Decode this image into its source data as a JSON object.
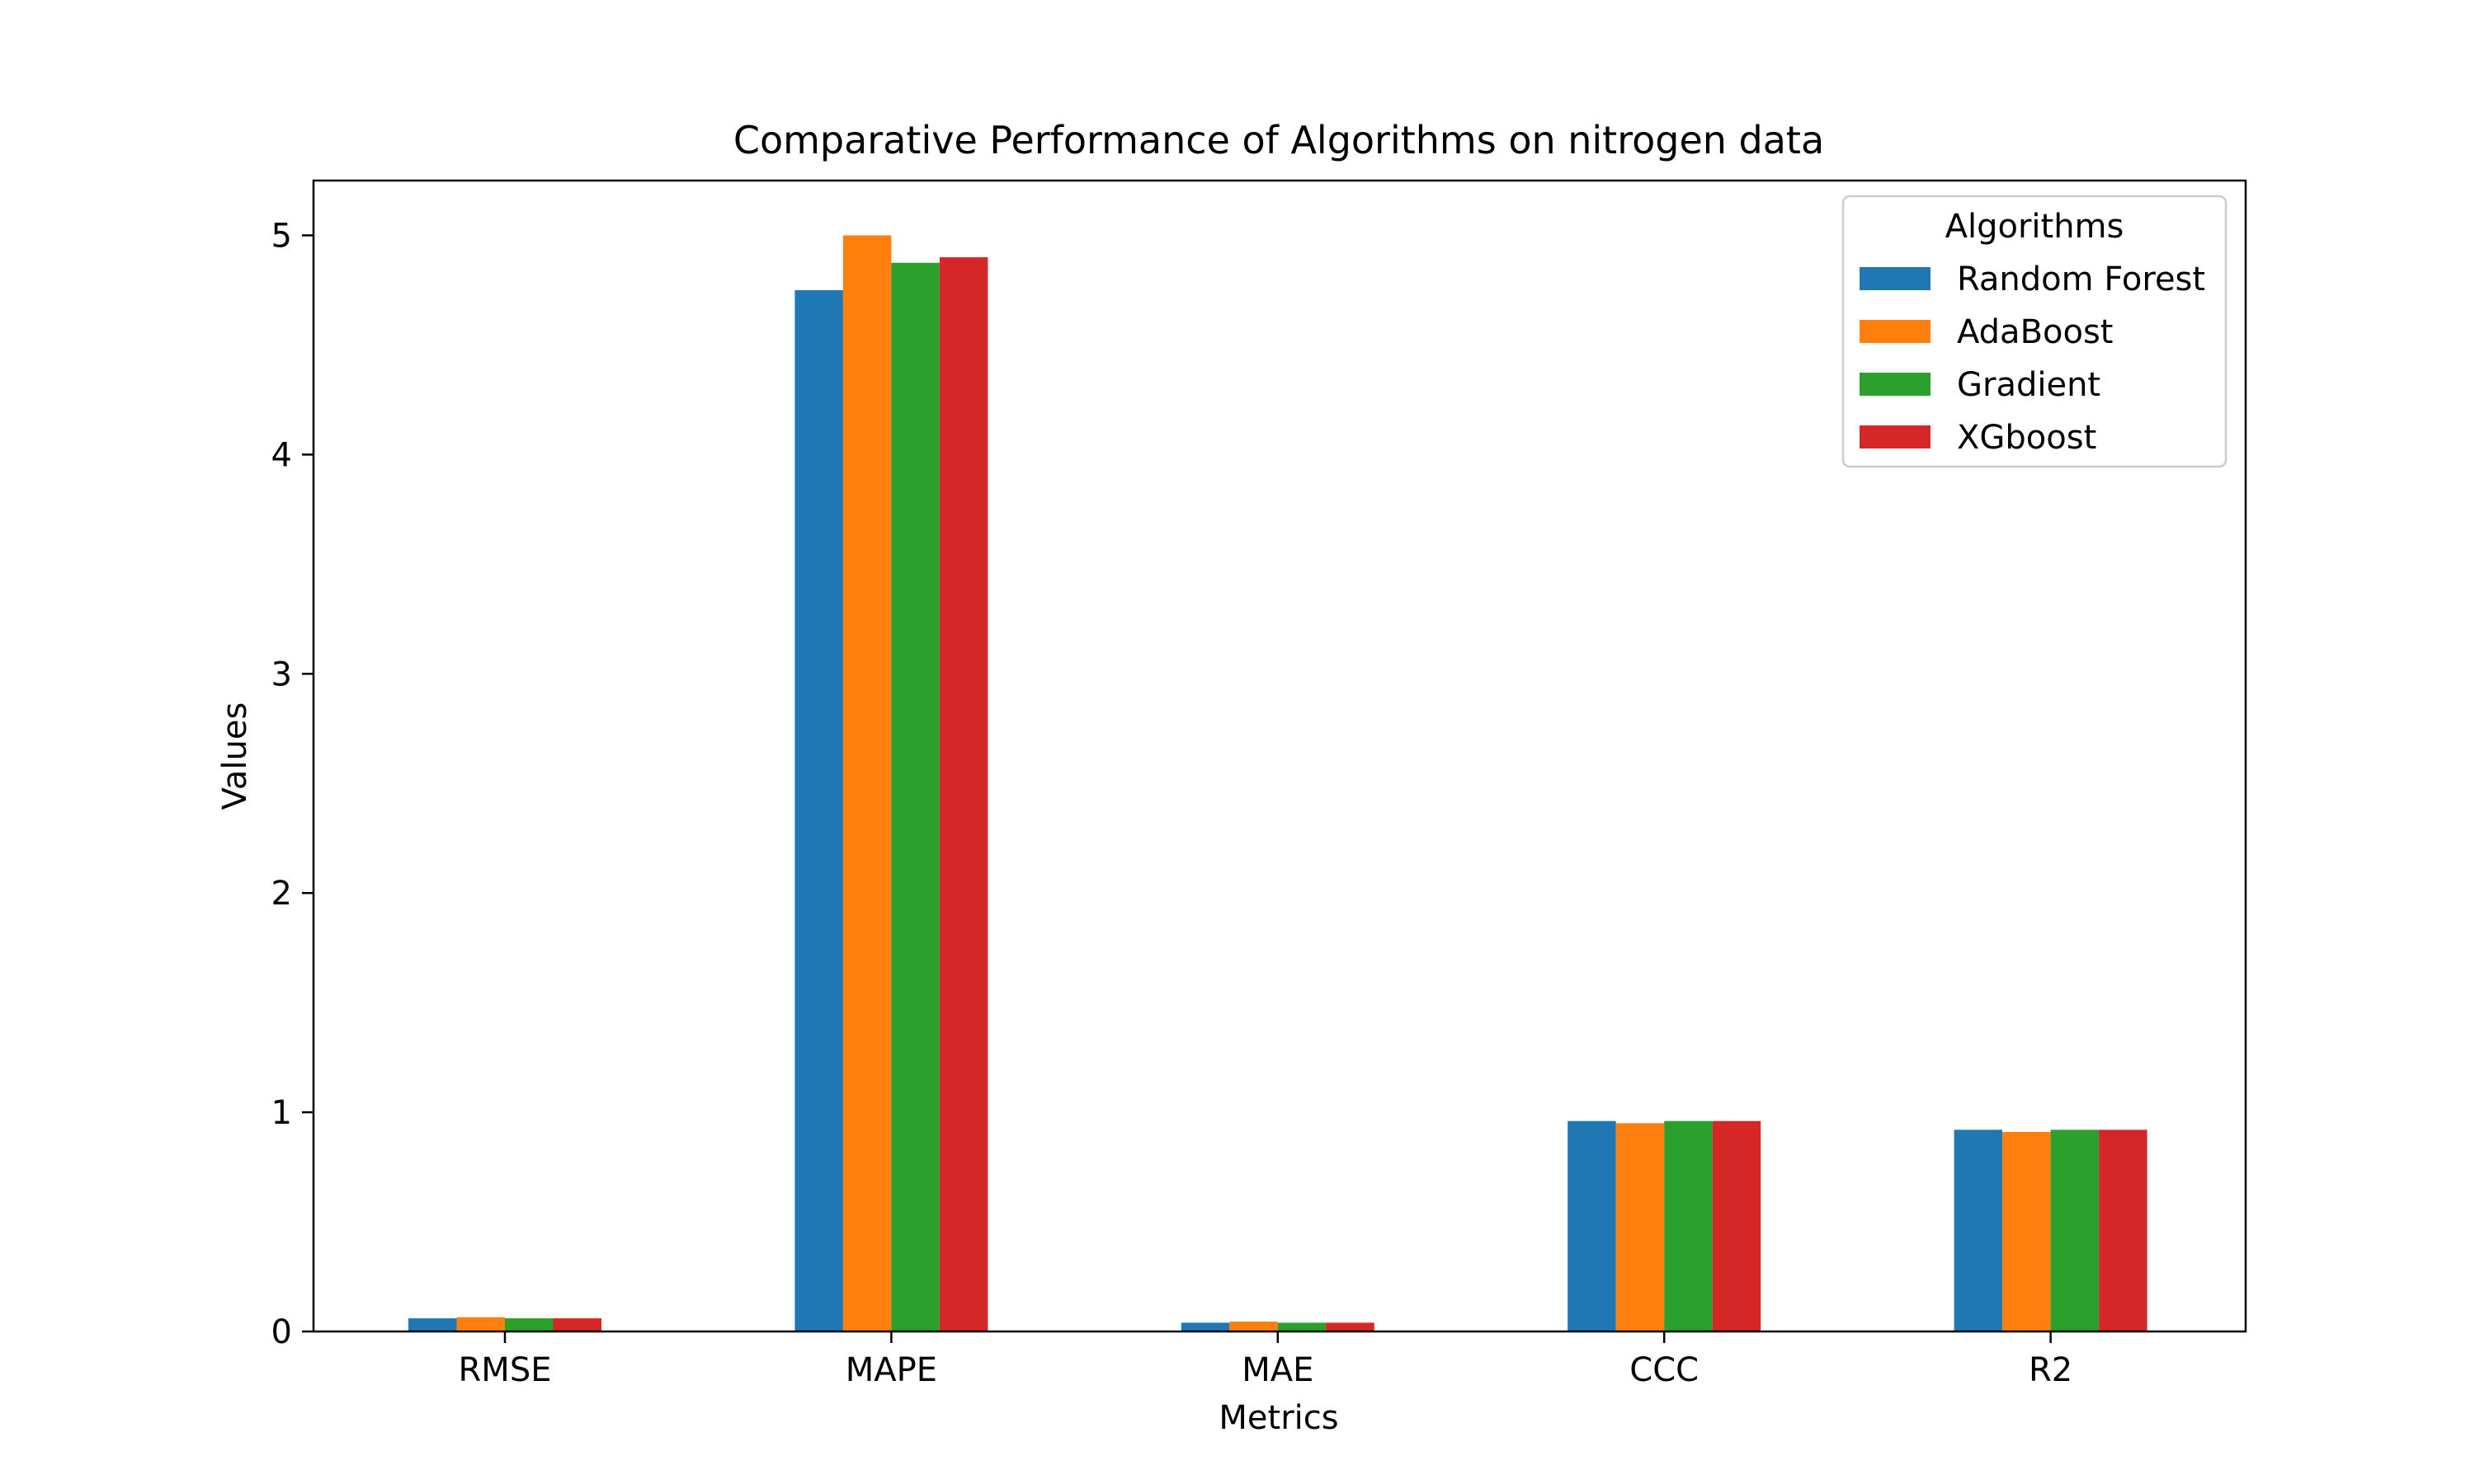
{
  "chart_data": {
    "type": "bar",
    "title": "Comparative Performance of Algorithms on nitrogen data",
    "xlabel": "Metrics",
    "ylabel": "Values",
    "categories": [
      "RMSE",
      "MAPE",
      "MAE",
      "CCC",
      "R2"
    ],
    "series": [
      {
        "name": "Random Forest",
        "color": "#1f77b4",
        "values": [
          0.06,
          4.75,
          0.04,
          0.96,
          0.92
        ]
      },
      {
        "name": "AdaBoost",
        "color": "#ff7f0e",
        "values": [
          0.065,
          5.0,
          0.045,
          0.95,
          0.91
        ]
      },
      {
        "name": "Gradient",
        "color": "#2ca02c",
        "values": [
          0.06,
          4.875,
          0.04,
          0.96,
          0.92
        ]
      },
      {
        "name": "XGboost",
        "color": "#d62728",
        "values": [
          0.06,
          4.9,
          0.04,
          0.96,
          0.92
        ]
      }
    ],
    "ylim": [
      0,
      5.25
    ],
    "yticks": [
      0,
      1,
      2,
      3,
      4,
      5
    ],
    "grid": false,
    "legend": {
      "title": "Algorithms",
      "placement": "top-right"
    }
  }
}
